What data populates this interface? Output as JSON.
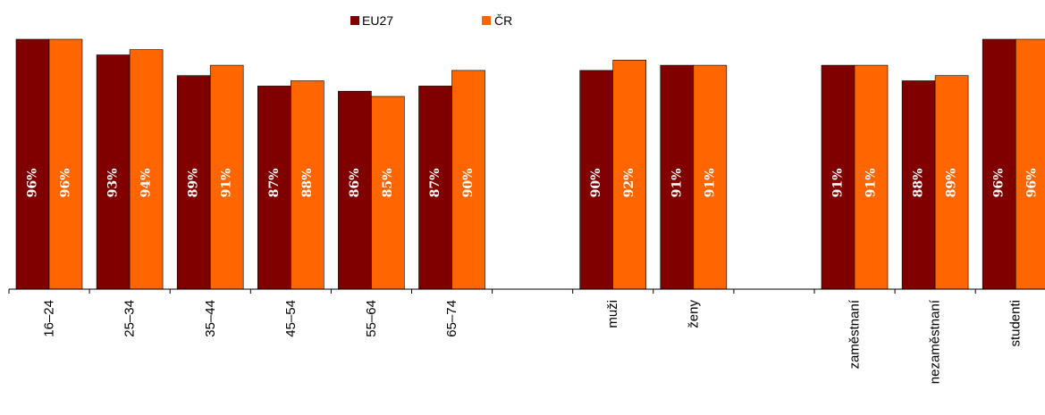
{
  "chart_data": {
    "type": "bar",
    "categories": [
      "16–24",
      "25–34",
      "35–44",
      "45–54",
      "55–64",
      "65–74",
      "",
      "muži",
      "ženy",
      "",
      "zaměstnaní",
      "nezaměstnaní",
      "studenti"
    ],
    "series": [
      {
        "name": "EU27",
        "color": "#800000",
        "values": [
          96,
          93,
          89,
          87,
          86,
          87,
          null,
          90,
          91,
          null,
          91,
          88,
          96
        ],
        "labels": [
          "96%",
          "93%",
          "89%",
          "87%",
          "86%",
          "87%",
          "",
          "90%",
          "91%",
          "",
          "91%",
          "88%",
          "96%"
        ]
      },
      {
        "name": "ČR",
        "color": "#ff6600",
        "values": [
          96,
          94,
          91,
          88,
          85,
          90,
          null,
          92,
          91,
          null,
          91,
          89,
          96
        ],
        "labels": [
          "96%",
          "94%",
          "91%",
          "88%",
          "85%",
          "90%",
          "",
          "92%",
          "91%",
          "",
          "91%",
          "89%",
          "96%"
        ]
      }
    ],
    "legend_position": "top",
    "grid": false
  }
}
